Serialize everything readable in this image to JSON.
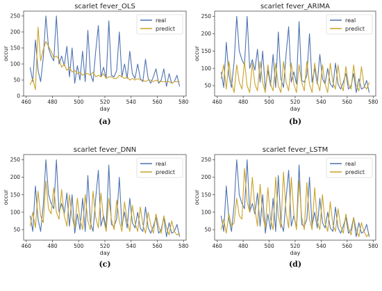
{
  "chart_data": [
    {
      "type": "line",
      "title": "scarlet fever_OLS",
      "panel_label": "(a)",
      "xlabel": "day",
      "ylabel": "occur",
      "xlim": [
        458,
        582
      ],
      "ylim": [
        0,
        265
      ],
      "xticks": [
        460,
        480,
        500,
        520,
        540,
        560,
        580
      ],
      "yticks": [
        0,
        50,
        100,
        150,
        200,
        250
      ],
      "legend": "top-right",
      "series": [
        {
          "name": "real",
          "color": "#4c72b0",
          "x": [
            463,
            465,
            467,
            469,
            471,
            473,
            475,
            477,
            479,
            481,
            483,
            485,
            487,
            489,
            491,
            493,
            495,
            497,
            499,
            501,
            503,
            505,
            507,
            509,
            511,
            513,
            515,
            517,
            519,
            521,
            523,
            525,
            527,
            529,
            531,
            533,
            535,
            537,
            539,
            541,
            543,
            545,
            547,
            549,
            551,
            553,
            555,
            557,
            559,
            561,
            563,
            565,
            567,
            569,
            571,
            573,
            575,
            577
          ],
          "y": [
            90,
            45,
            175,
            80,
            45,
            120,
            250,
            150,
            125,
            110,
            250,
            100,
            125,
            95,
            155,
            60,
            150,
            40,
            95,
            50,
            140,
            45,
            205,
            70,
            45,
            140,
            220,
            60,
            90,
            55,
            235,
            65,
            60,
            80,
            200,
            60,
            100,
            55,
            140,
            70,
            55,
            100,
            55,
            45,
            115,
            55,
            40,
            60,
            85,
            40,
            50,
            85,
            30,
            70,
            40,
            45,
            65,
            30
          ]
        },
        {
          "name": "predict",
          "color": "#c9a227",
          "x": [
            463,
            465,
            467,
            469,
            471,
            473,
            475,
            477,
            479,
            481,
            483,
            485,
            487,
            489,
            491,
            493,
            495,
            497,
            499,
            501,
            503,
            505,
            507,
            509,
            511,
            513,
            515,
            517,
            519,
            521,
            523,
            525,
            527,
            529,
            531,
            533,
            535,
            537,
            539,
            541,
            543,
            545,
            547,
            549,
            551,
            553,
            555,
            557,
            559,
            561,
            563,
            565,
            567,
            569,
            571,
            573,
            575,
            577
          ],
          "y": [
            35,
            55,
            20,
            215,
            110,
            145,
            170,
            155,
            140,
            120,
            125,
            115,
            90,
            100,
            80,
            90,
            75,
            80,
            70,
            75,
            65,
            70,
            70,
            65,
            75,
            60,
            65,
            60,
            70,
            55,
            60,
            60,
            55,
            55,
            65,
            60,
            55,
            60,
            50,
            55,
            50,
            55,
            50,
            50,
            45,
            50,
            50,
            45,
            50,
            45,
            45,
            45,
            45,
            45,
            40,
            45,
            45,
            45
          ]
        }
      ]
    },
    {
      "type": "line",
      "title": "scarlet fever_ARIMA",
      "panel_label": "(b)",
      "xlabel": "day",
      "ylabel": "occur",
      "xlim": [
        458,
        582
      ],
      "ylim": [
        20,
        265
      ],
      "xticks": [
        460,
        480,
        500,
        520,
        540,
        560,
        580
      ],
      "yticks": [
        50,
        100,
        150,
        200,
        250
      ],
      "legend": "top-right",
      "series": [
        {
          "name": "real",
          "color": "#4c72b0",
          "x": [
            463,
            465,
            467,
            469,
            471,
            473,
            475,
            477,
            479,
            481,
            483,
            485,
            487,
            489,
            491,
            493,
            495,
            497,
            499,
            501,
            503,
            505,
            507,
            509,
            511,
            513,
            515,
            517,
            519,
            521,
            523,
            525,
            527,
            529,
            531,
            533,
            535,
            537,
            539,
            541,
            543,
            545,
            547,
            549,
            551,
            553,
            555,
            557,
            559,
            561,
            563,
            565,
            567,
            569,
            571,
            573,
            575,
            577
          ],
          "y": [
            90,
            45,
            175,
            80,
            45,
            120,
            250,
            150,
            125,
            110,
            250,
            100,
            125,
            95,
            155,
            60,
            150,
            40,
            95,
            50,
            140,
            45,
            205,
            70,
            45,
            140,
            220,
            60,
            90,
            55,
            235,
            65,
            60,
            80,
            200,
            60,
            100,
            55,
            140,
            70,
            55,
            100,
            55,
            45,
            115,
            55,
            40,
            60,
            85,
            40,
            50,
            85,
            30,
            70,
            40,
            45,
            65,
            30
          ]
        },
        {
          "name": "predict",
          "color": "#c9a227",
          "x": [
            463,
            465,
            467,
            469,
            471,
            473,
            475,
            477,
            479,
            481,
            483,
            485,
            487,
            489,
            491,
            493,
            495,
            497,
            499,
            501,
            503,
            505,
            507,
            509,
            511,
            513,
            515,
            517,
            519,
            521,
            523,
            525,
            527,
            529,
            531,
            533,
            535,
            537,
            539,
            541,
            543,
            545,
            547,
            549,
            551,
            553,
            555,
            557,
            559,
            561,
            563,
            565,
            567,
            569,
            571,
            573,
            575,
            577
          ],
          "y": [
            70,
            110,
            40,
            120,
            60,
            30,
            110,
            60,
            40,
            120,
            50,
            30,
            115,
            55,
            35,
            120,
            60,
            30,
            110,
            55,
            35,
            115,
            50,
            30,
            120,
            60,
            35,
            115,
            55,
            30,
            110,
            60,
            35,
            120,
            55,
            30,
            115,
            60,
            35,
            110,
            55,
            30,
            115,
            60,
            40,
            110,
            55,
            35,
            105,
            55,
            40,
            110,
            50,
            35,
            105,
            50,
            40,
            60
          ]
        }
      ]
    },
    {
      "type": "line",
      "title": "scarlet fever_DNN",
      "panel_label": "(c)",
      "xlabel": "day",
      "ylabel": "occur",
      "xlim": [
        458,
        582
      ],
      "ylim": [
        20,
        265
      ],
      "xticks": [
        460,
        480,
        500,
        520,
        540,
        560,
        580
      ],
      "yticks": [
        50,
        100,
        150,
        200,
        250
      ],
      "legend": "top-right",
      "series": [
        {
          "name": "real",
          "color": "#4c72b0",
          "x": [
            463,
            465,
            467,
            469,
            471,
            473,
            475,
            477,
            479,
            481,
            483,
            485,
            487,
            489,
            491,
            493,
            495,
            497,
            499,
            501,
            503,
            505,
            507,
            509,
            511,
            513,
            515,
            517,
            519,
            521,
            523,
            525,
            527,
            529,
            531,
            533,
            535,
            537,
            539,
            541,
            543,
            545,
            547,
            549,
            551,
            553,
            555,
            557,
            559,
            561,
            563,
            565,
            567,
            569,
            571,
            573,
            575,
            577
          ],
          "y": [
            90,
            45,
            175,
            80,
            45,
            120,
            250,
            150,
            125,
            110,
            250,
            100,
            125,
            95,
            155,
            60,
            150,
            40,
            95,
            50,
            140,
            45,
            205,
            70,
            45,
            140,
            220,
            60,
            90,
            55,
            235,
            65,
            60,
            80,
            200,
            60,
            100,
            55,
            140,
            70,
            55,
            100,
            55,
            45,
            115,
            55,
            40,
            60,
            85,
            40,
            50,
            85,
            30,
            70,
            40,
            45,
            65,
            30
          ]
        },
        {
          "name": "predict",
          "color": "#c9a227",
          "x": [
            463,
            465,
            467,
            469,
            471,
            473,
            475,
            477,
            479,
            481,
            483,
            485,
            487,
            489,
            491,
            493,
            495,
            497,
            499,
            501,
            503,
            505,
            507,
            509,
            511,
            513,
            515,
            517,
            519,
            521,
            523,
            525,
            527,
            529,
            531,
            533,
            535,
            537,
            539,
            541,
            543,
            545,
            547,
            549,
            551,
            553,
            555,
            557,
            559,
            561,
            563,
            565,
            567,
            569,
            571,
            573,
            575,
            577
          ],
          "y": [
            60,
            100,
            55,
            160,
            90,
            70,
            190,
            110,
            95,
            170,
            100,
            80,
            165,
            90,
            60,
            150,
            85,
            55,
            140,
            80,
            50,
            150,
            75,
            50,
            160,
            85,
            55,
            155,
            80,
            45,
            140,
            80,
            50,
            135,
            75,
            45,
            130,
            75,
            45,
            120,
            70,
            45,
            115,
            65,
            40,
            100,
            65,
            40,
            95,
            60,
            40,
            90,
            55,
            35,
            75,
            45,
            35,
            40
          ]
        }
      ]
    },
    {
      "type": "line",
      "title": "scarlet fever_LSTM",
      "panel_label": "(d)",
      "xlabel": "day",
      "ylabel": "occur",
      "xlim": [
        458,
        582
      ],
      "ylim": [
        20,
        265
      ],
      "xticks": [
        460,
        480,
        500,
        520,
        540,
        560,
        580
      ],
      "yticks": [
        50,
        100,
        150,
        200,
        250
      ],
      "legend": "top-right",
      "series": [
        {
          "name": "real",
          "color": "#4c72b0",
          "x": [
            463,
            465,
            467,
            469,
            471,
            473,
            475,
            477,
            479,
            481,
            483,
            485,
            487,
            489,
            491,
            493,
            495,
            497,
            499,
            501,
            503,
            505,
            507,
            509,
            511,
            513,
            515,
            517,
            519,
            521,
            523,
            525,
            527,
            529,
            531,
            533,
            535,
            537,
            539,
            541,
            543,
            545,
            547,
            549,
            551,
            553,
            555,
            557,
            559,
            561,
            563,
            565,
            567,
            569,
            571,
            573,
            575,
            577
          ],
          "y": [
            90,
            45,
            175,
            80,
            45,
            120,
            250,
            150,
            125,
            110,
            250,
            100,
            125,
            95,
            155,
            60,
            150,
            40,
            95,
            50,
            140,
            45,
            205,
            70,
            45,
            140,
            220,
            60,
            90,
            55,
            235,
            65,
            60,
            80,
            200,
            60,
            100,
            55,
            140,
            70,
            55,
            100,
            55,
            45,
            115,
            55,
            40,
            60,
            85,
            40,
            50,
            85,
            30,
            70,
            40,
            45,
            65,
            30
          ]
        },
        {
          "name": "predict",
          "color": "#c9a227",
          "x": [
            463,
            465,
            467,
            469,
            471,
            473,
            475,
            477,
            479,
            481,
            483,
            485,
            487,
            489,
            491,
            493,
            495,
            497,
            499,
            501,
            503,
            505,
            507,
            509,
            511,
            513,
            515,
            517,
            519,
            521,
            523,
            525,
            527,
            529,
            531,
            533,
            535,
            537,
            539,
            541,
            543,
            545,
            547,
            549,
            551,
            553,
            555,
            557,
            559,
            561,
            563,
            565,
            567,
            569,
            571,
            573,
            575,
            577
          ],
          "y": [
            50,
            80,
            40,
            95,
            60,
            70,
            140,
            90,
            80,
            225,
            130,
            100,
            200,
            110,
            60,
            180,
            90,
            55,
            170,
            80,
            50,
            200,
            90,
            55,
            215,
            100,
            55,
            200,
            95,
            50,
            190,
            85,
            50,
            185,
            80,
            50,
            170,
            75,
            50,
            150,
            70,
            45,
            130,
            65,
            45,
            110,
            60,
            40,
            95,
            55,
            35,
            85,
            50,
            30,
            70,
            45,
            30,
            40
          ]
        }
      ]
    }
  ]
}
